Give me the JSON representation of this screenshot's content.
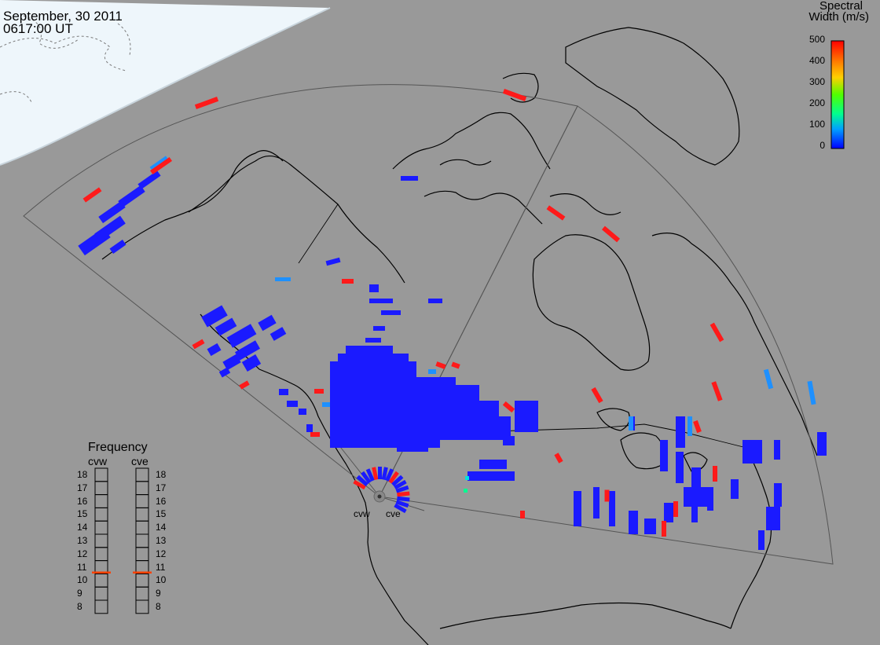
{
  "header": {
    "date": "September, 30 2011",
    "time": "0617:00 UT"
  },
  "color_scale": {
    "title_line1": "Spectral",
    "title_line2": "Width (m/s)",
    "ticks": [
      "500",
      "400",
      "300",
      "200",
      "100",
      "0"
    ],
    "range": [
      0,
      500
    ],
    "colors": [
      "#0000ff",
      "#00a0ff",
      "#00ff90",
      "#50ff00",
      "#ffd000",
      "#ff8000",
      "#ff0000"
    ]
  },
  "frequency_panel": {
    "title": "Frequency",
    "radars": [
      {
        "name": "cvw",
        "frequency_mhz": 10.6
      },
      {
        "name": "cve",
        "frequency_mhz": 10.6
      }
    ],
    "scale": [
      "18",
      "17",
      "16",
      "15",
      "14",
      "13",
      "12",
      "11",
      "10",
      "9",
      "8"
    ],
    "indicator_color": "#ff4000"
  },
  "radar_sites": {
    "west": "cvw",
    "east": "cve"
  },
  "colors": {
    "background": "#999999",
    "daylight": "#eef6fb",
    "coastline": "#000000",
    "fov_outline": "#555555",
    "echo_low": "#1a1aff",
    "echo_mid": "#1e90ff",
    "echo_high": "#ff1a1a"
  }
}
